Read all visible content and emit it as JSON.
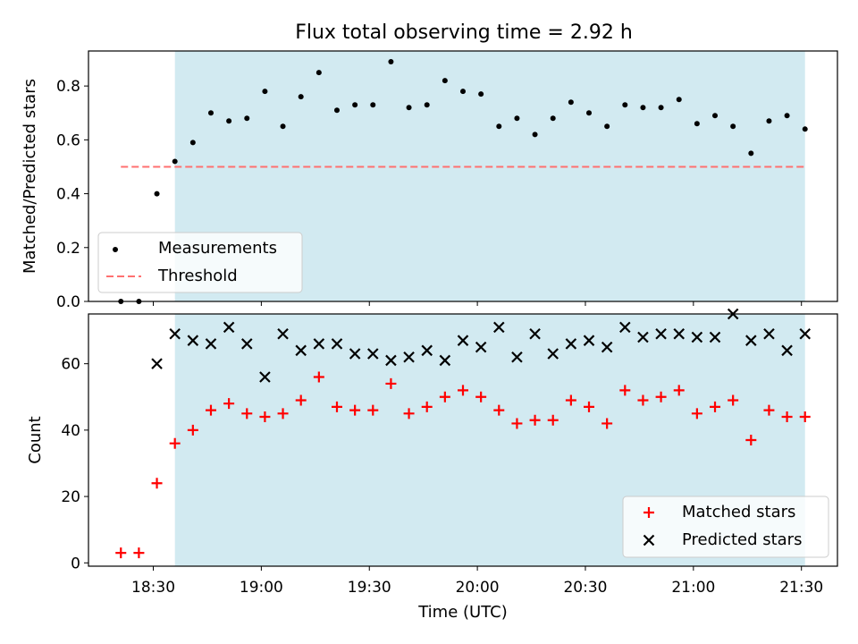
{
  "chart_data": [
    {
      "type": "scatter",
      "title": "Flux total observing time = 2.92 h",
      "ylabel": "Matched/Predicted stars",
      "xlabel": "",
      "xlim": [
        "18:12",
        "21:40"
      ],
      "ylim": [
        0,
        0.93
      ],
      "yticks": [
        0.0,
        0.2,
        0.4,
        0.6,
        0.8
      ],
      "ytick_labels": [
        "0.0",
        "0.2",
        "0.4",
        "0.6",
        "0.8"
      ],
      "xticks": [
        "18:30",
        "19:00",
        "19:30",
        "20:00",
        "20:30",
        "21:00",
        "21:30"
      ],
      "show_xtick_labels": false,
      "shaded_region": {
        "from": "18:36",
        "to": "21:31",
        "color": "#add8e6"
      },
      "legend_position": "lower left",
      "series": [
        {
          "name": "Measurements",
          "marker": "dot",
          "color": "#000000",
          "x": [
            "18:21",
            "18:26",
            "18:31",
            "18:36",
            "18:41",
            "18:46",
            "18:51",
            "18:56",
            "19:01",
            "19:06",
            "19:11",
            "19:16",
            "19:21",
            "19:26",
            "19:31",
            "19:36",
            "19:41",
            "19:46",
            "19:51",
            "19:56",
            "20:01",
            "20:06",
            "20:11",
            "20:16",
            "20:21",
            "20:26",
            "20:31",
            "20:36",
            "20:41",
            "20:46",
            "20:51",
            "20:56",
            "21:01",
            "21:06",
            "21:11",
            "21:16",
            "21:21",
            "21:26",
            "21:31"
          ],
          "values": [
            0.0,
            0.0,
            0.4,
            0.52,
            0.59,
            0.7,
            0.67,
            0.68,
            0.78,
            0.65,
            0.76,
            0.85,
            0.71,
            0.73,
            0.73,
            0.89,
            0.72,
            0.73,
            0.82,
            0.78,
            0.77,
            0.65,
            0.68,
            0.62,
            0.68,
            0.74,
            0.7,
            0.65,
            0.73,
            0.72,
            0.72,
            0.75,
            0.66,
            0.69,
            0.65,
            0.55,
            0.67,
            0.69,
            0.64
          ]
        },
        {
          "name": "Threshold",
          "style": "dashed",
          "color": "#ff7070",
          "x": [
            "18:21",
            "21:31"
          ],
          "values": [
            0.5,
            0.5
          ]
        }
      ]
    },
    {
      "type": "scatter",
      "title": "",
      "xlabel": "Time (UTC)",
      "ylabel": "Count",
      "xlim": [
        "18:12",
        "21:40"
      ],
      "ylim": [
        -1,
        75
      ],
      "yticks": [
        0,
        20,
        40,
        60
      ],
      "ytick_labels": [
        "0",
        "20",
        "40",
        "60"
      ],
      "xticks": [
        "18:30",
        "19:00",
        "19:30",
        "20:00",
        "20:30",
        "21:00",
        "21:30"
      ],
      "xtick_labels": [
        "18:30",
        "19:00",
        "19:30",
        "20:00",
        "20:30",
        "21:00",
        "21:30"
      ],
      "shaded_region": {
        "from": "18:36",
        "to": "21:31",
        "color": "#add8e6"
      },
      "legend_position": "lower right",
      "x": [
        "18:21",
        "18:26",
        "18:31",
        "18:36",
        "18:41",
        "18:46",
        "18:51",
        "18:56",
        "19:01",
        "19:06",
        "19:11",
        "19:16",
        "19:21",
        "19:26",
        "19:31",
        "19:36",
        "19:41",
        "19:46",
        "19:51",
        "19:56",
        "20:01",
        "20:06",
        "20:11",
        "20:16",
        "20:21",
        "20:26",
        "20:31",
        "20:36",
        "20:41",
        "20:46",
        "20:51",
        "20:56",
        "21:01",
        "21:06",
        "21:11",
        "21:16",
        "21:21",
        "21:26",
        "21:31"
      ],
      "series": [
        {
          "name": "Matched stars",
          "marker": "plus",
          "color": "#ff0000",
          "values": [
            3,
            3,
            24,
            36,
            40,
            46,
            48,
            45,
            44,
            45,
            49,
            56,
            47,
            46,
            46,
            54,
            45,
            47,
            50,
            52,
            50,
            46,
            42,
            43,
            43,
            49,
            47,
            42,
            52,
            49,
            50,
            52,
            45,
            47,
            49,
            37,
            46,
            44,
            44
          ]
        },
        {
          "name": "Predicted stars",
          "marker": "x",
          "color": "#000000",
          "values": [
            null,
            null,
            60,
            69,
            67,
            66,
            71,
            66,
            56,
            69,
            64,
            66,
            66,
            63,
            63,
            61,
            62,
            64,
            61,
            67,
            65,
            71,
            62,
            69,
            63,
            66,
            67,
            65,
            71,
            68,
            69,
            69,
            68,
            68,
            75,
            67,
            69,
            64,
            69
          ]
        }
      ]
    }
  ]
}
